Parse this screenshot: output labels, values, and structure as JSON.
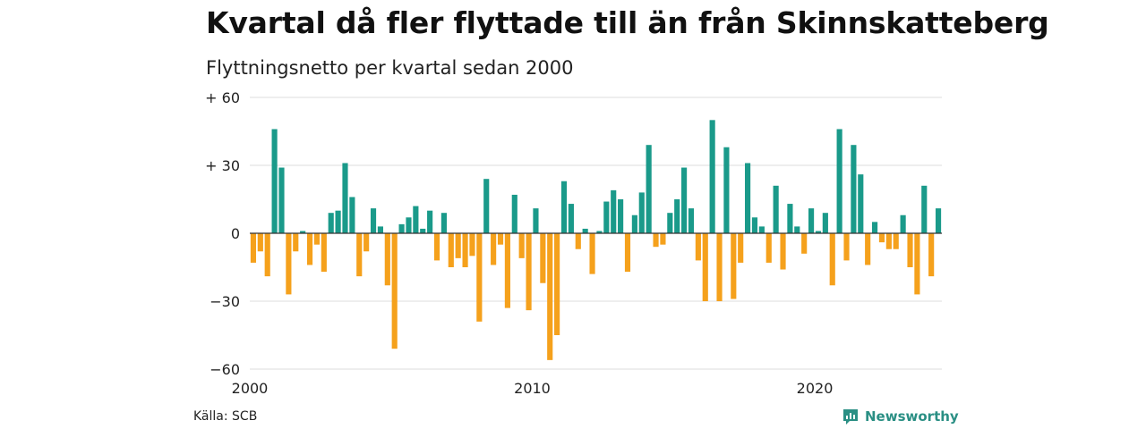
{
  "title": "Kvartal då fler flyttade till än från Skinnskatteberg",
  "subtitle": "Flyttningsnetto per kvartal sedan 2000",
  "source": "Källa: SCB",
  "brand": "Newsworthy",
  "colors": {
    "positive": "#1a9a8a",
    "negative": "#f5a11c",
    "brand": "#2a8f84"
  },
  "chart_data": {
    "type": "bar",
    "ylim": [
      -60,
      60
    ],
    "y_ticks": [
      {
        "value": 60,
        "label": "+ 60"
      },
      {
        "value": 30,
        "label": "+ 30"
      },
      {
        "value": 0,
        "label": "0"
      },
      {
        "value": -30,
        "label": "−30"
      },
      {
        "value": -60,
        "label": "−60"
      }
    ],
    "x_ticks": [
      "2000",
      "2010",
      "2020"
    ],
    "start_year": 2000,
    "grid": true,
    "values": [
      -13,
      -8,
      -19,
      46,
      29,
      -27,
      -8,
      1,
      -14,
      -5,
      -17,
      9,
      10,
      31,
      16,
      -19,
      -8,
      11,
      3,
      -23,
      -51,
      4,
      7,
      12,
      2,
      10,
      -12,
      9,
      -15,
      -11,
      -15,
      -10,
      -39,
      24,
      -14,
      -5,
      -33,
      17,
      -11,
      -34,
      11,
      -22,
      -56,
      -45,
      23,
      13,
      -7,
      2,
      -18,
      1,
      14,
      19,
      15,
      -17,
      8,
      18,
      39,
      -6,
      -5,
      9,
      15,
      29,
      11,
      -12,
      -30,
      50,
      -30,
      38,
      -29,
      -13,
      31,
      7,
      3,
      -13,
      21,
      -16,
      13,
      3,
      -9,
      11,
      1,
      9,
      -23,
      46,
      -12,
      39,
      26,
      -14,
      5,
      -4,
      -7,
      -7,
      8,
      -15,
      -27,
      21,
      -19,
      11
    ]
  }
}
